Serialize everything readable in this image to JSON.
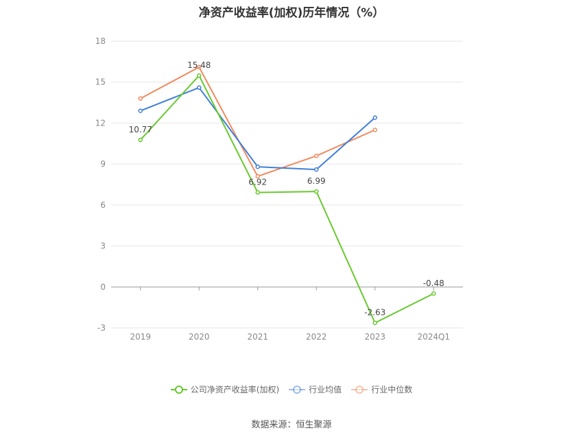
{
  "chart_data": {
    "type": "line",
    "title": "净资产收益率(加权)历年情况（%）",
    "categories": [
      "2019",
      "2020",
      "2021",
      "2022",
      "2023",
      "2024Q1"
    ],
    "ylim": [
      -3,
      18
    ],
    "yticks": [
      -3,
      0,
      3,
      6,
      9,
      12,
      15,
      18
    ],
    "grid": true,
    "legend_position": "bottom",
    "series": [
      {
        "name": "公司净资产收益率(加权)",
        "color": "#66c92d",
        "values": [
          10.77,
          15.48,
          6.92,
          6.99,
          -2.63,
          -0.48
        ],
        "labels": [
          "10.77",
          "15.48",
          "6.92",
          "6.99",
          "-2.63",
          "-0.48"
        ]
      },
      {
        "name": "行业均值",
        "color": "#3f7fd9",
        "values": [
          12.9,
          14.6,
          8.8,
          8.6,
          12.4,
          null
        ]
      },
      {
        "name": "行业中位数",
        "color": "#f08a5d",
        "values": [
          13.8,
          16.1,
          8.1,
          9.6,
          11.5,
          null
        ]
      }
    ]
  },
  "source": "数据来源：恒生聚源"
}
